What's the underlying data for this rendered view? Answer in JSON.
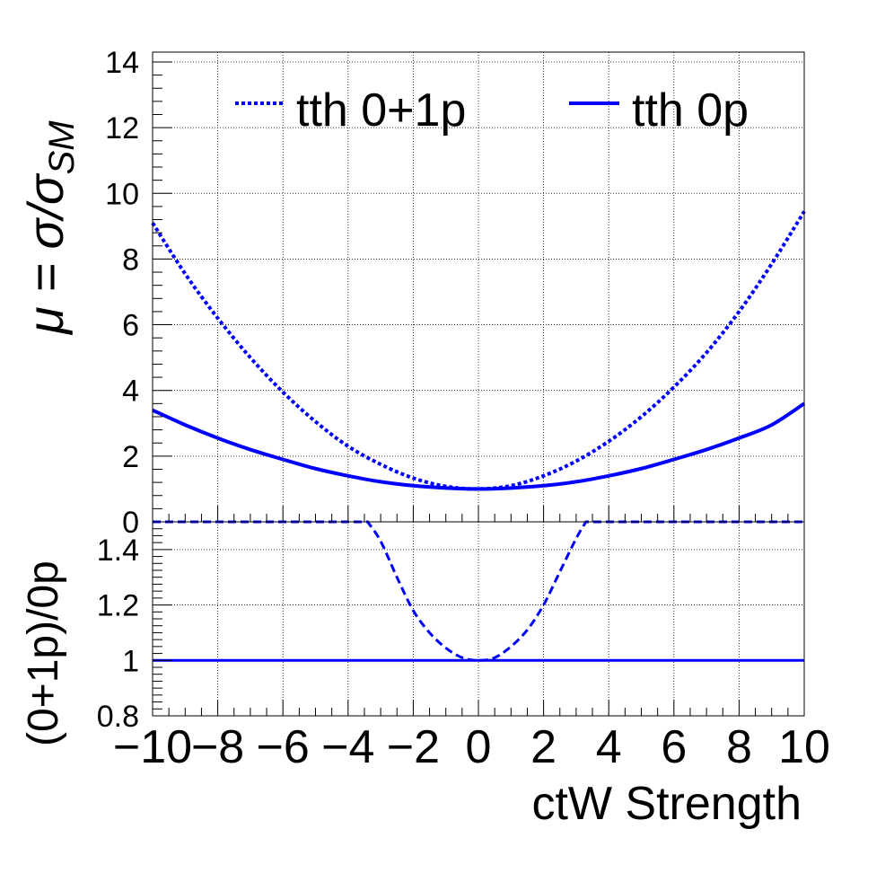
{
  "chart_data": [
    {
      "type": "line",
      "panel": "top",
      "ylabel_main": "μ = σ/σ",
      "ylabel_sub": "SM",
      "xlim": [
        -10,
        10
      ],
      "ylim": [
        0,
        14.3
      ],
      "yticks": [
        0,
        2,
        4,
        6,
        8,
        10,
        12,
        14
      ],
      "grid": true,
      "legend_position": "top",
      "x": [
        -10,
        -9,
        -8,
        -7,
        -6,
        -5,
        -4,
        -3,
        -2,
        -1,
        0,
        1,
        2,
        3,
        4,
        5,
        6,
        7,
        8,
        9,
        10
      ],
      "series": [
        {
          "name": "tth 0+1p",
          "style": "dotted",
          "color": "#0000ff",
          "values": [
            9.1,
            7.55,
            6.2,
            5.0,
            3.95,
            3.05,
            2.3,
            1.75,
            1.33,
            1.08,
            1.0,
            1.1,
            1.4,
            1.85,
            2.45,
            3.2,
            4.1,
            5.15,
            6.4,
            7.85,
            9.45
          ]
        },
        {
          "name": "tth 0p",
          "style": "solid",
          "color": "#0000ff",
          "values": [
            3.4,
            2.95,
            2.55,
            2.2,
            1.9,
            1.62,
            1.4,
            1.22,
            1.1,
            1.03,
            1.0,
            1.03,
            1.1,
            1.22,
            1.4,
            1.62,
            1.9,
            2.2,
            2.55,
            2.95,
            3.6
          ]
        }
      ]
    },
    {
      "type": "line",
      "panel": "bottom",
      "ylabel": "(0+1p)/0p",
      "xlabel": "ctW Strength",
      "xlim": [
        -10,
        10
      ],
      "ylim": [
        0.8,
        1.5
      ],
      "yticks": [
        0.8,
        1,
        1.2,
        1.4
      ],
      "ytick_labels": [
        "0.8",
        "1",
        "1.2",
        "1.4"
      ],
      "xticks": [
        -10,
        -8,
        -6,
        -4,
        -2,
        0,
        2,
        4,
        6,
        8,
        10
      ],
      "xtick_labels": [
        "−10",
        "−8",
        "−6",
        "−4",
        "−2",
        "0",
        "2",
        "4",
        "6",
        "8",
        "10"
      ],
      "grid": true,
      "series": [
        {
          "name": "",
          "style": "dashed",
          "color": "#0000ff",
          "x": [
            -10,
            -3.4,
            -3.0,
            -2.5,
            -2.0,
            -1.5,
            -1.0,
            -0.5,
            0,
            0.5,
            1.0,
            1.5,
            2.0,
            2.5,
            3.0,
            3.3,
            10
          ],
          "values": [
            1.5,
            1.5,
            1.43,
            1.3,
            1.18,
            1.1,
            1.045,
            1.01,
            1.0,
            1.01,
            1.05,
            1.11,
            1.2,
            1.32,
            1.44,
            1.5,
            1.5
          ]
        },
        {
          "name": "",
          "style": "solid",
          "color": "#0000ff",
          "x": [
            -10,
            10
          ],
          "values": [
            1.0,
            1.0
          ]
        }
      ]
    }
  ]
}
